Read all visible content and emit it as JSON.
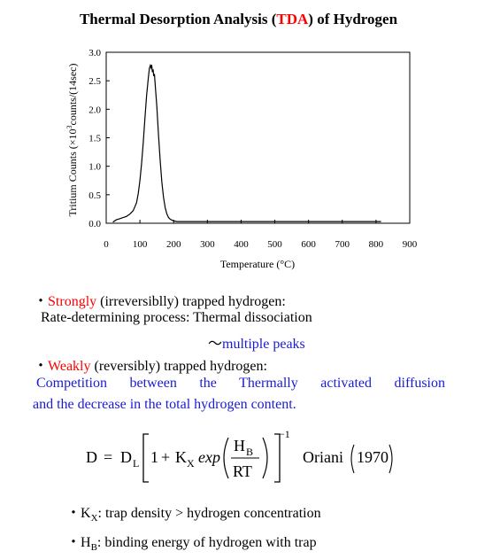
{
  "title": {
    "prefix": "Thermal Desorption Analysis (",
    "highlight": "TDA",
    "suffix": ") of Hydrogen",
    "highlight_color": "#ff0000"
  },
  "chart_data": {
    "type": "line",
    "xlabel": "Temperature (°C)",
    "ylabel_parts": [
      "Tritium Counts (×10",
      "3",
      "counts/(14sec)"
    ],
    "xlim": [
      0,
      900
    ],
    "ylim": [
      0,
      3.0
    ],
    "x_ticks": [
      "0",
      "100",
      "200",
      "300",
      "400",
      "500",
      "600",
      "700",
      "800",
      "900"
    ],
    "y_ticks": [
      "0.0",
      "0.5",
      "1.0",
      "1.5",
      "2.0",
      "2.5",
      "3.0"
    ],
    "grid": false,
    "series": [
      {
        "color": "#000000",
        "x": [
          20,
          30,
          40,
          50,
          60,
          70,
          80,
          90,
          95,
          100,
          105,
          110,
          115,
          120,
          125,
          128,
          131,
          133,
          135,
          137,
          139,
          141,
          143,
          145,
          147,
          150,
          155,
          160,
          165,
          170,
          175,
          180,
          185,
          190,
          200,
          210,
          230,
          250,
          300,
          350,
          400,
          450,
          500,
          550,
          600,
          650,
          700,
          750,
          800,
          815
        ],
        "y": [
          0.02,
          0.06,
          0.08,
          0.1,
          0.12,
          0.16,
          0.22,
          0.36,
          0.52,
          0.75,
          1.05,
          1.42,
          1.85,
          2.25,
          2.55,
          2.72,
          2.77,
          2.73,
          2.78,
          2.65,
          2.7,
          2.58,
          2.62,
          2.45,
          2.3,
          2.05,
          1.55,
          1.1,
          0.72,
          0.45,
          0.27,
          0.16,
          0.1,
          0.07,
          0.04,
          0.03,
          0.03,
          0.03,
          0.03,
          0.03,
          0.03,
          0.03,
          0.03,
          0.03,
          0.03,
          0.03,
          0.03,
          0.03,
          0.03,
          0.03
        ]
      }
    ]
  },
  "text": {
    "bullet": "・",
    "line1_red": "Strongly",
    "line1_rest": " (irreversiblly) trapped hydrogen:",
    "line2": "Rate-determining process: Thermal dissociation",
    "line3_tilde": "～",
    "line3_blue": "multiple peaks",
    "line4_red": "Weakly",
    "line4_rest": " (reversibly) trapped hydrogen:",
    "line5": "Competition between the Thermally activated diffusion",
    "line6": "and the decrease in the total hydrogen content.",
    "blue_color": "#1a1ad6"
  },
  "formula": {
    "lhs": "D",
    "eq": "=",
    "dl": "D",
    "dl_sub": "L",
    "one": "1",
    "plus": "+",
    "kx": "K",
    "kx_sub": "X",
    "exp": "exp",
    "num": "H",
    "num_sub": "B",
    "den": "RT",
    "power": "−1",
    "ref": "Oriani",
    "year": "1970"
  },
  "notes": [
    {
      "sym": "K",
      "sub": "X",
      "text": ": trap density > hydrogen concentration"
    },
    {
      "sym": "H",
      "sub": "B",
      "text": ": binding energy of hydrogen with trap"
    }
  ]
}
